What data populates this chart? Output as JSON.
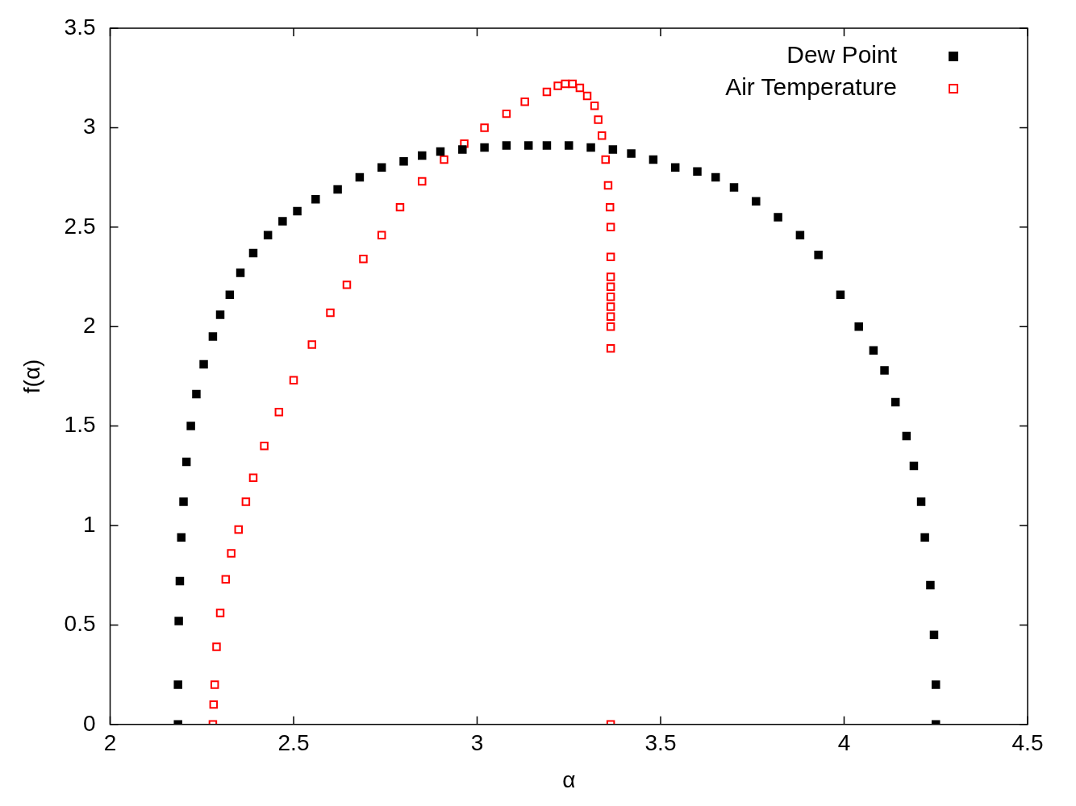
{
  "chart_data": {
    "type": "scatter",
    "xlabel": "α",
    "ylabel": "f(α)",
    "xlim": [
      2,
      4.5
    ],
    "ylim": [
      0,
      3.5
    ],
    "xticks": [
      2,
      2.5,
      3,
      3.5,
      4,
      4.5
    ],
    "yticks": [
      0,
      0.5,
      1,
      1.5,
      2,
      2.5,
      3,
      3.5
    ],
    "grid": false,
    "legend": "top right",
    "marker": "square",
    "series": [
      {
        "name": "Dew Point",
        "color": "#000000",
        "x": [
          2.185,
          2.185,
          2.187,
          2.19,
          2.194,
          2.2,
          2.208,
          2.22,
          2.235,
          2.255,
          2.28,
          2.3,
          2.326,
          2.355,
          2.39,
          2.43,
          2.47,
          2.51,
          2.56,
          2.62,
          2.68,
          2.74,
          2.8,
          2.85,
          2.9,
          2.96,
          3.02,
          3.08,
          3.14,
          3.19,
          3.25,
          3.31,
          3.37,
          3.42,
          3.48,
          3.54,
          3.6,
          3.65,
          3.7,
          3.76,
          3.82,
          3.88,
          3.93,
          3.99,
          4.04,
          4.08,
          4.11,
          4.14,
          4.17,
          4.19,
          4.21,
          4.22,
          4.235,
          4.245,
          4.25,
          4.25
        ],
        "values": [
          0,
          0.2,
          0.52,
          0.72,
          0.94,
          1.12,
          1.32,
          1.5,
          1.66,
          1.81,
          1.95,
          2.06,
          2.16,
          2.27,
          2.37,
          2.46,
          2.53,
          2.58,
          2.64,
          2.69,
          2.75,
          2.8,
          2.83,
          2.86,
          2.88,
          2.89,
          2.9,
          2.91,
          2.91,
          2.91,
          2.91,
          2.9,
          2.89,
          2.87,
          2.84,
          2.8,
          2.78,
          2.75,
          2.7,
          2.63,
          2.55,
          2.46,
          2.36,
          2.16,
          2.0,
          1.88,
          1.78,
          1.62,
          1.45,
          1.3,
          1.12,
          0.94,
          0.7,
          0.45,
          0.2,
          0
        ]
      },
      {
        "name": "Air Temperature",
        "color": "#ff0000",
        "x": [
          2.28,
          2.282,
          2.285,
          2.29,
          2.3,
          2.315,
          2.33,
          2.35,
          2.37,
          2.39,
          2.42,
          2.46,
          2.5,
          2.55,
          2.6,
          2.645,
          2.69,
          2.74,
          2.79,
          2.85,
          2.91,
          2.965,
          3.02,
          3.08,
          3.13,
          3.19,
          3.22,
          3.24,
          3.26,
          3.28,
          3.3,
          3.32,
          3.33,
          3.34,
          3.35,
          3.357,
          3.362,
          3.364,
          3.364,
          3.364,
          3.364,
          3.364,
          3.364,
          3.364,
          3.364,
          3.364,
          3.364
        ],
        "values": [
          0,
          0.1,
          0.2,
          0.39,
          0.56,
          0.73,
          0.86,
          0.98,
          1.12,
          1.24,
          1.4,
          1.57,
          1.73,
          1.91,
          2.07,
          2.21,
          2.34,
          2.46,
          2.6,
          2.73,
          2.84,
          2.92,
          3.0,
          3.07,
          3.13,
          3.18,
          3.21,
          3.22,
          3.22,
          3.2,
          3.16,
          3.11,
          3.04,
          2.96,
          2.84,
          2.71,
          2.6,
          2.5,
          2.35,
          2.25,
          2.2,
          2.15,
          2.1,
          2.05,
          2.0,
          1.89,
          0
        ]
      }
    ]
  }
}
